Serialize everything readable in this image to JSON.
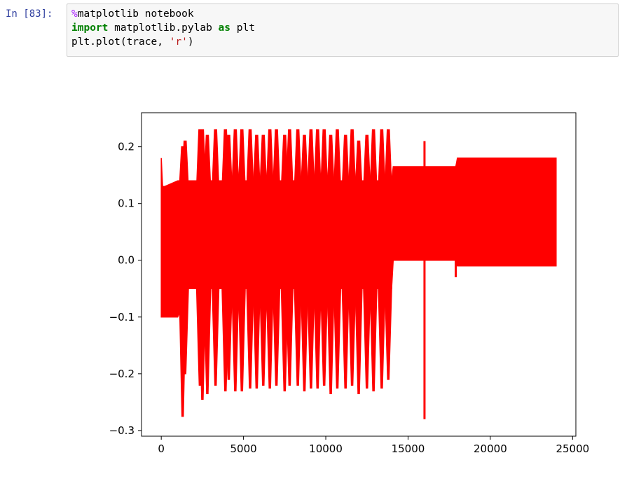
{
  "cell": {
    "prompt": "In [83]:",
    "code": {
      "line1": {
        "magic": "%",
        "rest": "matplotlib notebook"
      },
      "line2": {
        "kw1": "import",
        "mid": " matplotlib.pylab ",
        "kw2": "as",
        "end": " plt"
      },
      "line3": {
        "pre": "plt.plot(trace, ",
        "str": "'r'",
        "post": ")"
      }
    }
  },
  "chart_data": {
    "type": "line",
    "title": "",
    "xlabel": "",
    "ylabel": "",
    "xlim": [
      -1200,
      25200
    ],
    "ylim": [
      -0.31,
      0.26
    ],
    "x_ticks": [
      0,
      5000,
      10000,
      15000,
      20000,
      25000
    ],
    "x_tick_labels": [
      "0",
      "5000",
      "10000",
      "15000",
      "20000",
      "25000"
    ],
    "y_ticks": [
      -0.3,
      -0.2,
      -0.1,
      0.0,
      0.1,
      0.2
    ],
    "y_tick_labels": [
      "−0.3",
      "−0.2",
      "−0.1",
      "0.0",
      "0.1",
      "0.2"
    ],
    "grid": false,
    "line_color": "#ff0000",
    "envelope": {
      "x": [
        0,
        80,
        200,
        1000,
        1300,
        1500,
        3000,
        5000,
        7000,
        9000,
        11000,
        13000,
        14000,
        14100,
        15000,
        16000,
        17000,
        17900,
        18000,
        19000,
        21000,
        23000,
        24000
      ],
      "upper": [
        0.18,
        0.13,
        0.13,
        0.14,
        0.14,
        0.14,
        0.14,
        0.14,
        0.14,
        0.14,
        0.14,
        0.14,
        0.14,
        0.165,
        0.165,
        0.165,
        0.165,
        0.165,
        0.18,
        0.18,
        0.18,
        0.18,
        0.18
      ],
      "lower": [
        -0.1,
        -0.1,
        -0.1,
        -0.1,
        -0.08,
        -0.05,
        -0.05,
        -0.05,
        -0.05,
        -0.05,
        -0.05,
        -0.05,
        -0.05,
        0.0,
        0.0,
        0.0,
        0.0,
        0.0,
        -0.01,
        -0.01,
        -0.01,
        -0.01,
        -0.01
      ]
    },
    "burst_positions": [
      1300,
      1450,
      2350,
      2500,
      2800,
      3300,
      3900,
      4100,
      4500,
      4900,
      5400,
      5800,
      6200,
      6600,
      7000,
      7500,
      7800,
      8300,
      8700,
      9100,
      9500,
      9900,
      10300,
      10700,
      11200,
      11600,
      12000,
      12500,
      12900,
      13400,
      13800
    ],
    "burst_peaks": [
      0.2,
      0.21,
      0.23,
      0.23,
      0.22,
      0.23,
      0.23,
      0.22,
      0.23,
      0.23,
      0.23,
      0.22,
      0.22,
      0.23,
      0.23,
      0.22,
      0.23,
      0.23,
      0.22,
      0.23,
      0.23,
      0.23,
      0.22,
      0.23,
      0.22,
      0.23,
      0.21,
      0.22,
      0.23,
      0.23,
      0.23
    ],
    "burst_troughs": [
      -0.275,
      -0.2,
      -0.22,
      -0.245,
      -0.235,
      -0.22,
      -0.23,
      -0.21,
      -0.23,
      -0.23,
      -0.225,
      -0.225,
      -0.22,
      -0.225,
      -0.22,
      -0.23,
      -0.22,
      -0.22,
      -0.23,
      -0.225,
      -0.225,
      -0.22,
      -0.235,
      -0.225,
      -0.225,
      -0.22,
      -0.235,
      -0.225,
      -0.23,
      -0.225,
      -0.21
    ],
    "spikes": [
      {
        "x": 16000,
        "peak": 0.21,
        "trough": -0.28
      },
      {
        "x": 17900,
        "peak": 0.165,
        "trough": -0.03
      }
    ]
  }
}
